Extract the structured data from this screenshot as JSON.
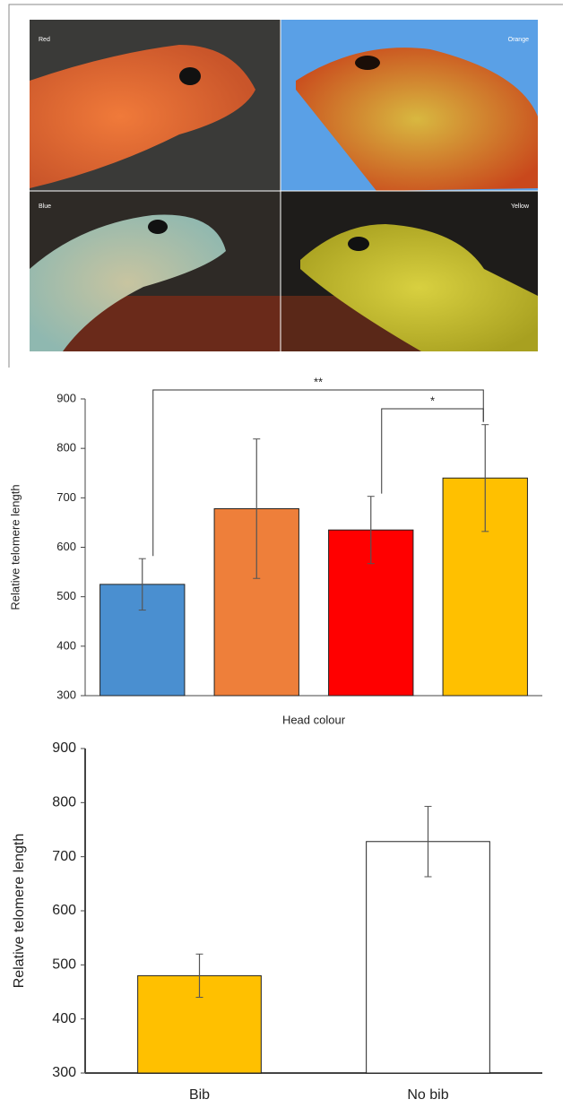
{
  "photo_panel": {
    "labels": [
      "Red",
      "Orange",
      "Blue",
      "Yellow"
    ]
  },
  "chart_data": [
    {
      "type": "bar",
      "x_label": "Head colour",
      "y_label": "Relative telomere length",
      "categories": [
        null,
        null,
        null,
        null
      ],
      "values": [
        525,
        678,
        635,
        740
      ],
      "errors": [
        52,
        141,
        68,
        108
      ],
      "colors": [
        "#4a8fd0",
        "#ee7f3a",
        "#ff0000",
        "#ffc000"
      ],
      "ylim": [
        300,
        900
      ],
      "yticks": [
        300,
        400,
        500,
        600,
        700,
        800,
        900
      ],
      "annotations": [
        {
          "label": "**",
          "from": 0,
          "to": 3
        },
        {
          "label": "*",
          "from": 2,
          "to": 3
        }
      ]
    },
    {
      "type": "bar",
      "y_label": "Relative telomere length",
      "categories": [
        "Bib",
        "No bib"
      ],
      "values": [
        480,
        728
      ],
      "errors": [
        40,
        65
      ],
      "colors": [
        "#ffc000",
        "#ffffff"
      ],
      "ylim": [
        300,
        900
      ],
      "yticks": [
        300,
        400,
        500,
        600,
        700,
        800,
        900
      ]
    }
  ]
}
